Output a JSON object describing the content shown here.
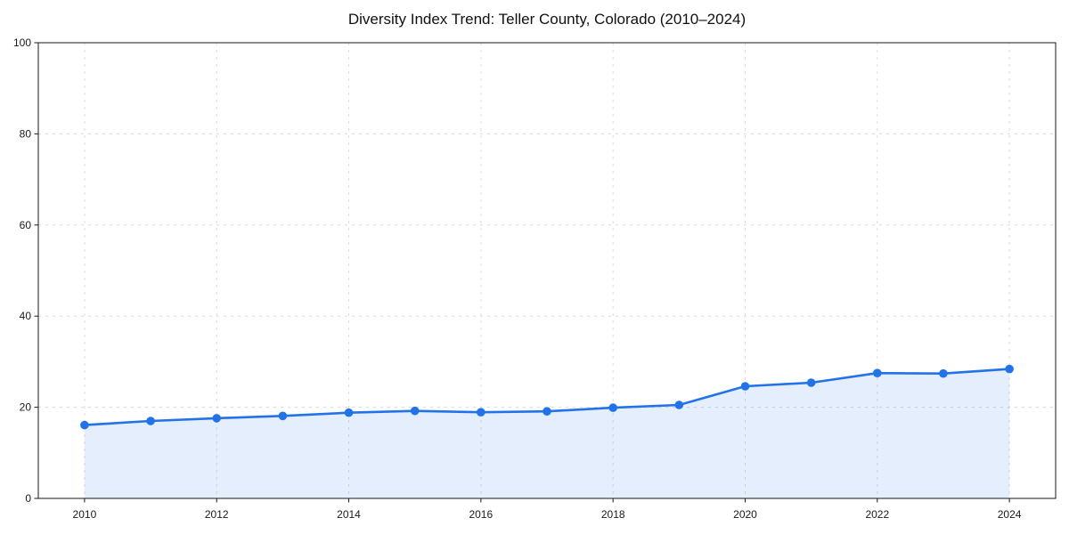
{
  "chart_data": {
    "type": "line",
    "title": "Diversity Index Trend: Teller County, Colorado (2010–2024)",
    "xlabel": "",
    "ylabel": "",
    "x": [
      2010,
      2011,
      2012,
      2013,
      2014,
      2015,
      2016,
      2017,
      2018,
      2019,
      2020,
      2021,
      2022,
      2023,
      2024
    ],
    "series": [
      {
        "name": "Diversity Index",
        "values": [
          16.1,
          17.0,
          17.6,
          18.1,
          18.8,
          19.2,
          18.9,
          19.1,
          19.9,
          20.5,
          24.6,
          25.4,
          27.5,
          27.4,
          28.4
        ]
      }
    ],
    "xlim": [
      2009.3,
      2024.7
    ],
    "ylim": [
      0,
      100
    ],
    "xticks": [
      2010,
      2012,
      2014,
      2016,
      2018,
      2020,
      2022,
      2024
    ],
    "yticks": [
      0,
      20,
      40,
      60,
      80,
      100
    ],
    "grid": true,
    "grid_style": "dashed",
    "legend": false,
    "marker": "circle",
    "area_fill": true,
    "colors": {
      "line": "#2273e8",
      "marker": "#2273e8",
      "fill": "rgba(34,115,232,0.12)",
      "grid": "#dcdcdc",
      "spine": "#1a1a1a",
      "tick_text": "#1a1a1a",
      "title_text": "#111111",
      "background": "#ffffff"
    }
  }
}
